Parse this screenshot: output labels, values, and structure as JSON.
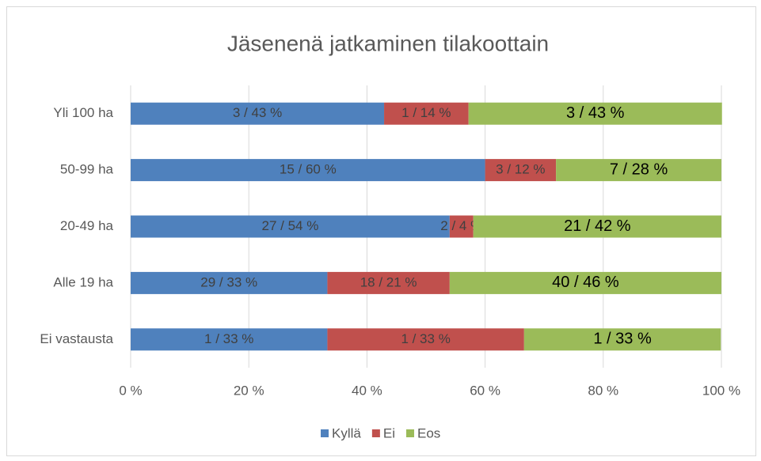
{
  "chart_data": {
    "type": "stacked_barh",
    "title": "Jäsenenä jatkaminen tilakoottain",
    "categories": [
      "Yli 100 ha",
      "50-99 ha",
      "20-49 ha",
      "Alle 19 ha",
      "Ei vastausta"
    ],
    "series": [
      {
        "name": "Kyllä",
        "color": "#4f81bd",
        "values": [
          42.9,
          60,
          54,
          33.3,
          33.3
        ],
        "value_labels": [
          "3 / 43 %",
          "15 / 60 %",
          "27 / 54 %",
          "29 / 33 %",
          "1 / 33 %"
        ]
      },
      {
        "name": "Ei",
        "color": "#c0504d",
        "values": [
          14.3,
          12,
          4,
          20.7,
          33.3
        ],
        "value_labels": [
          "1 / 14 %",
          "3 / 12 %",
          "2 / 4 %",
          "18 / 21 %",
          "1 / 33 %"
        ]
      },
      {
        "name": "Eos",
        "color": "#9bbb59",
        "values": [
          42.9,
          28,
          42,
          46,
          33.3
        ],
        "value_labels": [
          "3 / 43 %",
          "7 / 28 %",
          "21 / 42 %",
          "40 / 46 %",
          "1 / 33 %"
        ]
      }
    ],
    "xlim": [
      0,
      100
    ],
    "xticks": [
      {
        "value": 0,
        "label": "0 %"
      },
      {
        "value": 20,
        "label": "20 %"
      },
      {
        "value": 40,
        "label": "40 %"
      },
      {
        "value": 60,
        "label": "60 %"
      },
      {
        "value": 80,
        "label": "80 %"
      },
      {
        "value": 100,
        "label": "100 %"
      }
    ],
    "grid": true,
    "legend": "bottom"
  }
}
